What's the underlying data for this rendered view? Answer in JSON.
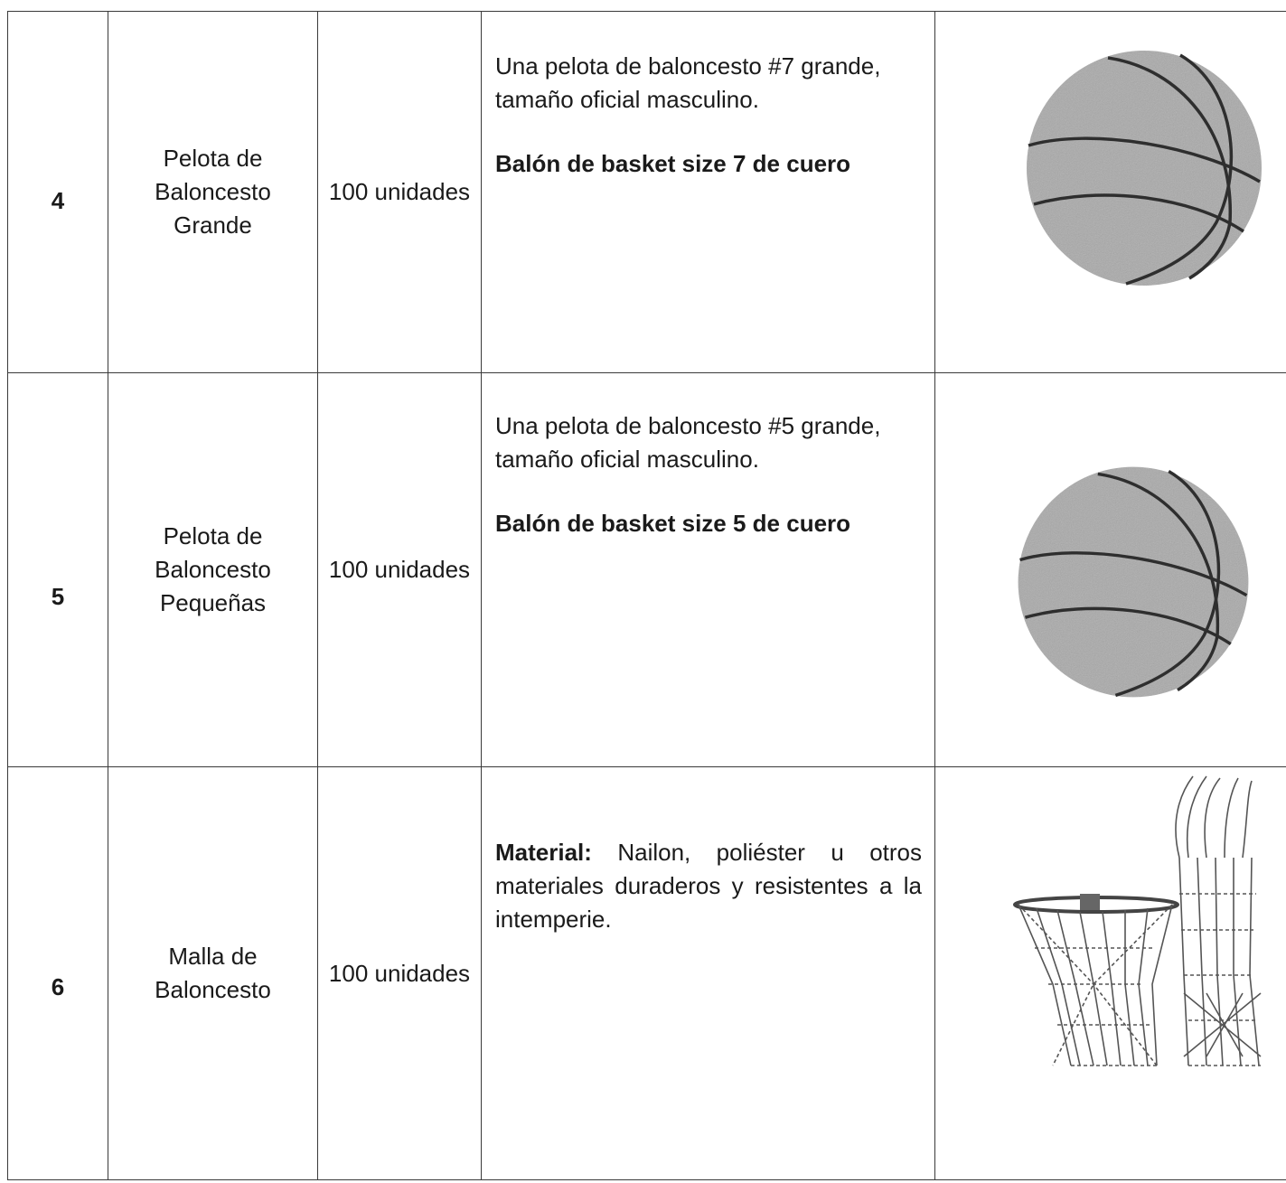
{
  "table": {
    "rows": [
      {
        "number": "4",
        "name": "Pelota de Baloncesto Grande",
        "quantity": "100 unidades",
        "description": [
          "Una pelota de baloncesto #7 grande, tamaño oficial masculino.",
          "Balón de basket size 7 de cuero"
        ]
      },
      {
        "number": "5",
        "name": "Pelota de Baloncesto Pequeñas",
        "quantity": "100 unidades",
        "description": [
          "Una pelota de baloncesto #5 grande, tamaño oficial masculino.",
          "Balón de basket size 5 de cuero"
        ]
      },
      {
        "number": "6",
        "name": "Malla de Baloncesto",
        "quantity": "100 unidades",
        "description_label": "Material:",
        "description": [
          "Nailon, poliéster u otros materiales duraderos y resistentes a la intemperie."
        ]
      }
    ]
  }
}
